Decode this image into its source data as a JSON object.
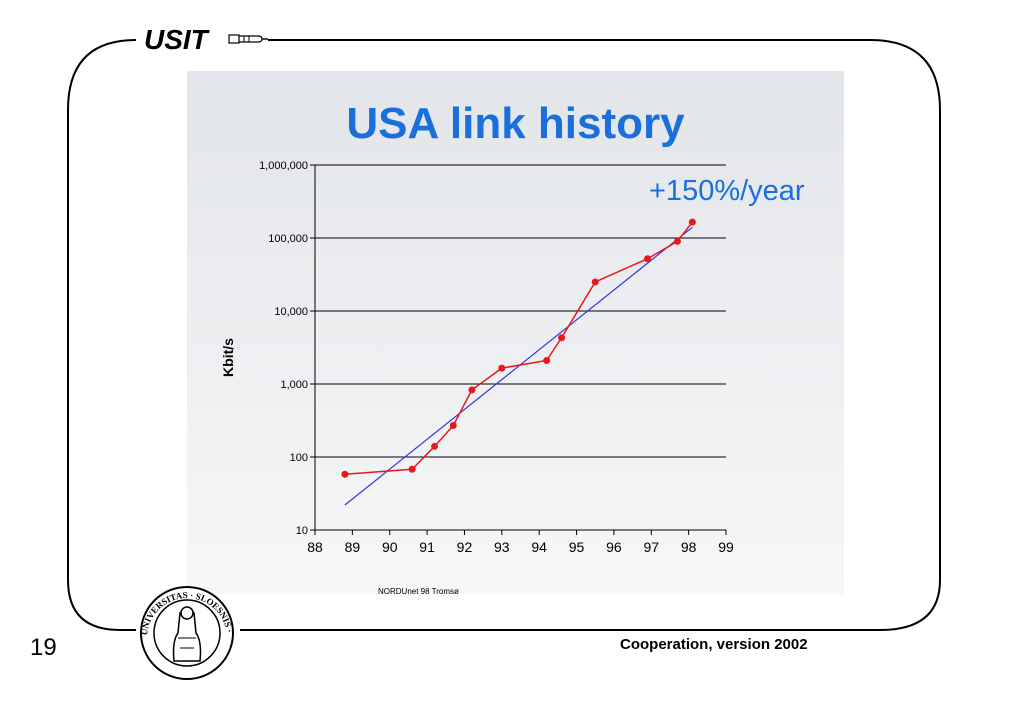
{
  "header": {
    "title": "USIT"
  },
  "page_number": "19",
  "footer": {
    "text": "Cooperation, version 2002"
  },
  "colors": {
    "title_blue": "#1a6fdc",
    "data_red": "#e8191c",
    "trend_blue": "#3333dd"
  },
  "seal": {
    "name": "university-seal",
    "text": "UNIVERSITAS · SLOESNIS · MDCCCXI"
  },
  "chart_data": {
    "type": "line",
    "title": "USA link history",
    "annotation": "+150%/year",
    "source_note": "NORDUnet 98 Tromsø",
    "ylabel": "Kbit/s",
    "xlabel": "",
    "yscale": "log",
    "ylim": [
      10,
      1000000
    ],
    "xlim": [
      88,
      99
    ],
    "x_ticks": [
      "88",
      "89",
      "90",
      "91",
      "92",
      "93",
      "94",
      "95",
      "96",
      "97",
      "98",
      "99"
    ],
    "y_ticks": [
      "10",
      "100",
      "1,000",
      "10,000",
      "100,000",
      "1,000,000"
    ],
    "grid": "horizontal",
    "series": [
      {
        "type": "line",
        "x": [
          88.8,
          90.6,
          91.2,
          91.7,
          92.2,
          93.0,
          94.2,
          94.6,
          95.5,
          96.9,
          97.7,
          98.1
        ],
        "y": [
          58,
          68,
          140,
          270,
          830,
          1650,
          2100,
          4300,
          25000,
          52000,
          90000,
          165000
        ]
      },
      {
        "type": "trendline",
        "x": [
          88.8,
          98.1
        ],
        "y": [
          22,
          140000
        ]
      }
    ]
  }
}
